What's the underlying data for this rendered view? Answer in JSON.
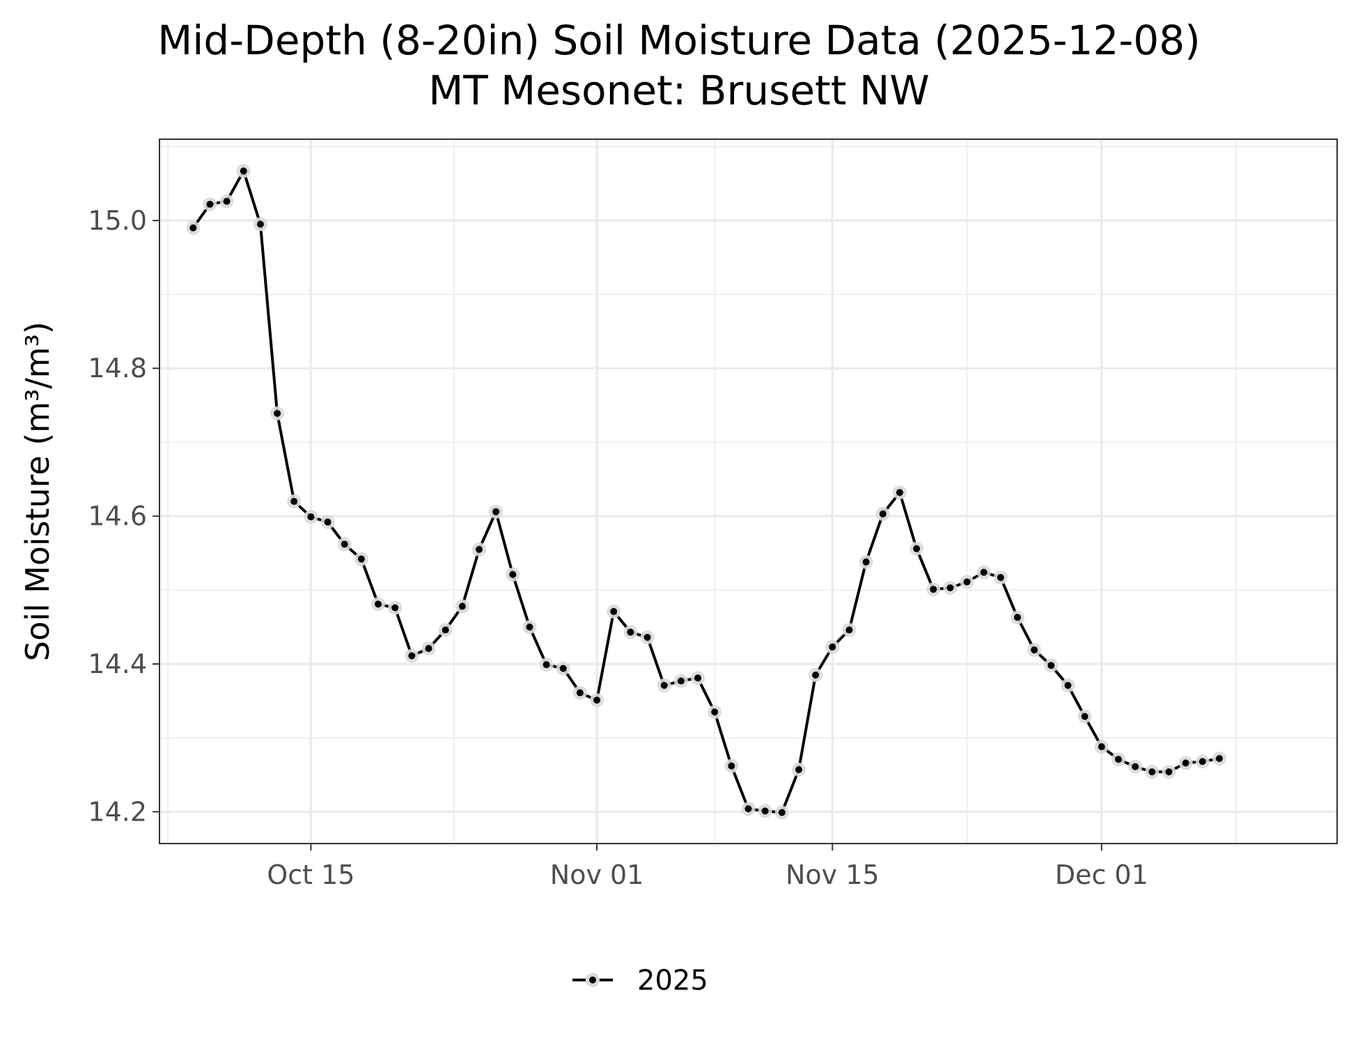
{
  "chart_data": {
    "type": "line",
    "title": "Mid-Depth (8-20in) Soil Moisture Data (2025-12-08)",
    "subtitle": "MT Mesonet: Brusett NW",
    "xlabel": "",
    "ylabel": "Soil Moisture (m³/m³)",
    "xlim": [
      "2025-10-06",
      "2025-12-15"
    ],
    "ylim": [
      14.157,
      15.11
    ],
    "x_ticks": [
      {
        "date": "2025-10-15",
        "label": "Oct 15"
      },
      {
        "date": "2025-11-01",
        "label": "Nov 01"
      },
      {
        "date": "2025-11-15",
        "label": "Nov 15"
      },
      {
        "date": "2025-12-01",
        "label": "Dec 01"
      }
    ],
    "y_ticks": [
      14.2,
      14.4,
      14.6,
      14.8,
      15.0
    ],
    "y_tick_labels": [
      "14.2",
      "14.4",
      "14.6",
      "14.8",
      "15.0"
    ],
    "grid": true,
    "legend": {
      "position": "bottom",
      "entries": [
        "2025"
      ]
    },
    "colors": {
      "line": "#000000",
      "marker_halo": "#d9d9d9",
      "grid": "#ebebeb",
      "panel_border": "#333333"
    },
    "series": [
      {
        "name": "2025",
        "x": [
          "2025-10-08",
          "2025-10-09",
          "2025-10-10",
          "2025-10-11",
          "2025-10-12",
          "2025-10-13",
          "2025-10-14",
          "2025-10-15",
          "2025-10-16",
          "2025-10-17",
          "2025-10-18",
          "2025-10-19",
          "2025-10-20",
          "2025-10-21",
          "2025-10-22",
          "2025-10-23",
          "2025-10-24",
          "2025-10-25",
          "2025-10-26",
          "2025-10-27",
          "2025-10-28",
          "2025-10-29",
          "2025-10-30",
          "2025-10-31",
          "2025-11-01",
          "2025-11-02",
          "2025-11-03",
          "2025-11-04",
          "2025-11-05",
          "2025-11-06",
          "2025-11-07",
          "2025-11-08",
          "2025-11-09",
          "2025-11-10",
          "2025-11-11",
          "2025-11-12",
          "2025-11-13",
          "2025-11-14",
          "2025-11-15",
          "2025-11-16",
          "2025-11-17",
          "2025-11-18",
          "2025-11-19",
          "2025-11-20",
          "2025-11-21",
          "2025-11-22",
          "2025-11-23",
          "2025-11-24",
          "2025-11-25",
          "2025-11-26",
          "2025-11-27",
          "2025-11-28",
          "2025-11-29",
          "2025-11-30",
          "2025-12-01",
          "2025-12-02",
          "2025-12-03",
          "2025-12-04",
          "2025-12-05",
          "2025-12-06",
          "2025-12-07",
          "2025-12-08"
        ],
        "values": [
          14.99,
          15.022,
          15.026,
          15.067,
          14.995,
          14.739,
          14.62,
          14.599,
          14.592,
          14.562,
          14.542,
          14.481,
          14.476,
          14.411,
          14.421,
          14.446,
          14.478,
          14.555,
          14.606,
          14.521,
          14.45,
          14.399,
          14.394,
          14.361,
          14.351,
          14.471,
          14.443,
          14.436,
          14.371,
          14.377,
          14.381,
          14.335,
          14.262,
          14.204,
          14.201,
          14.199,
          14.257,
          14.385,
          14.423,
          14.446,
          14.538,
          14.603,
          14.632,
          14.556,
          14.501,
          14.503,
          14.511,
          14.524,
          14.517,
          14.463,
          14.419,
          14.398,
          14.371,
          14.329,
          14.288,
          14.271,
          14.261,
          14.254,
          14.254,
          14.266,
          14.268,
          14.272
        ]
      }
    ]
  }
}
